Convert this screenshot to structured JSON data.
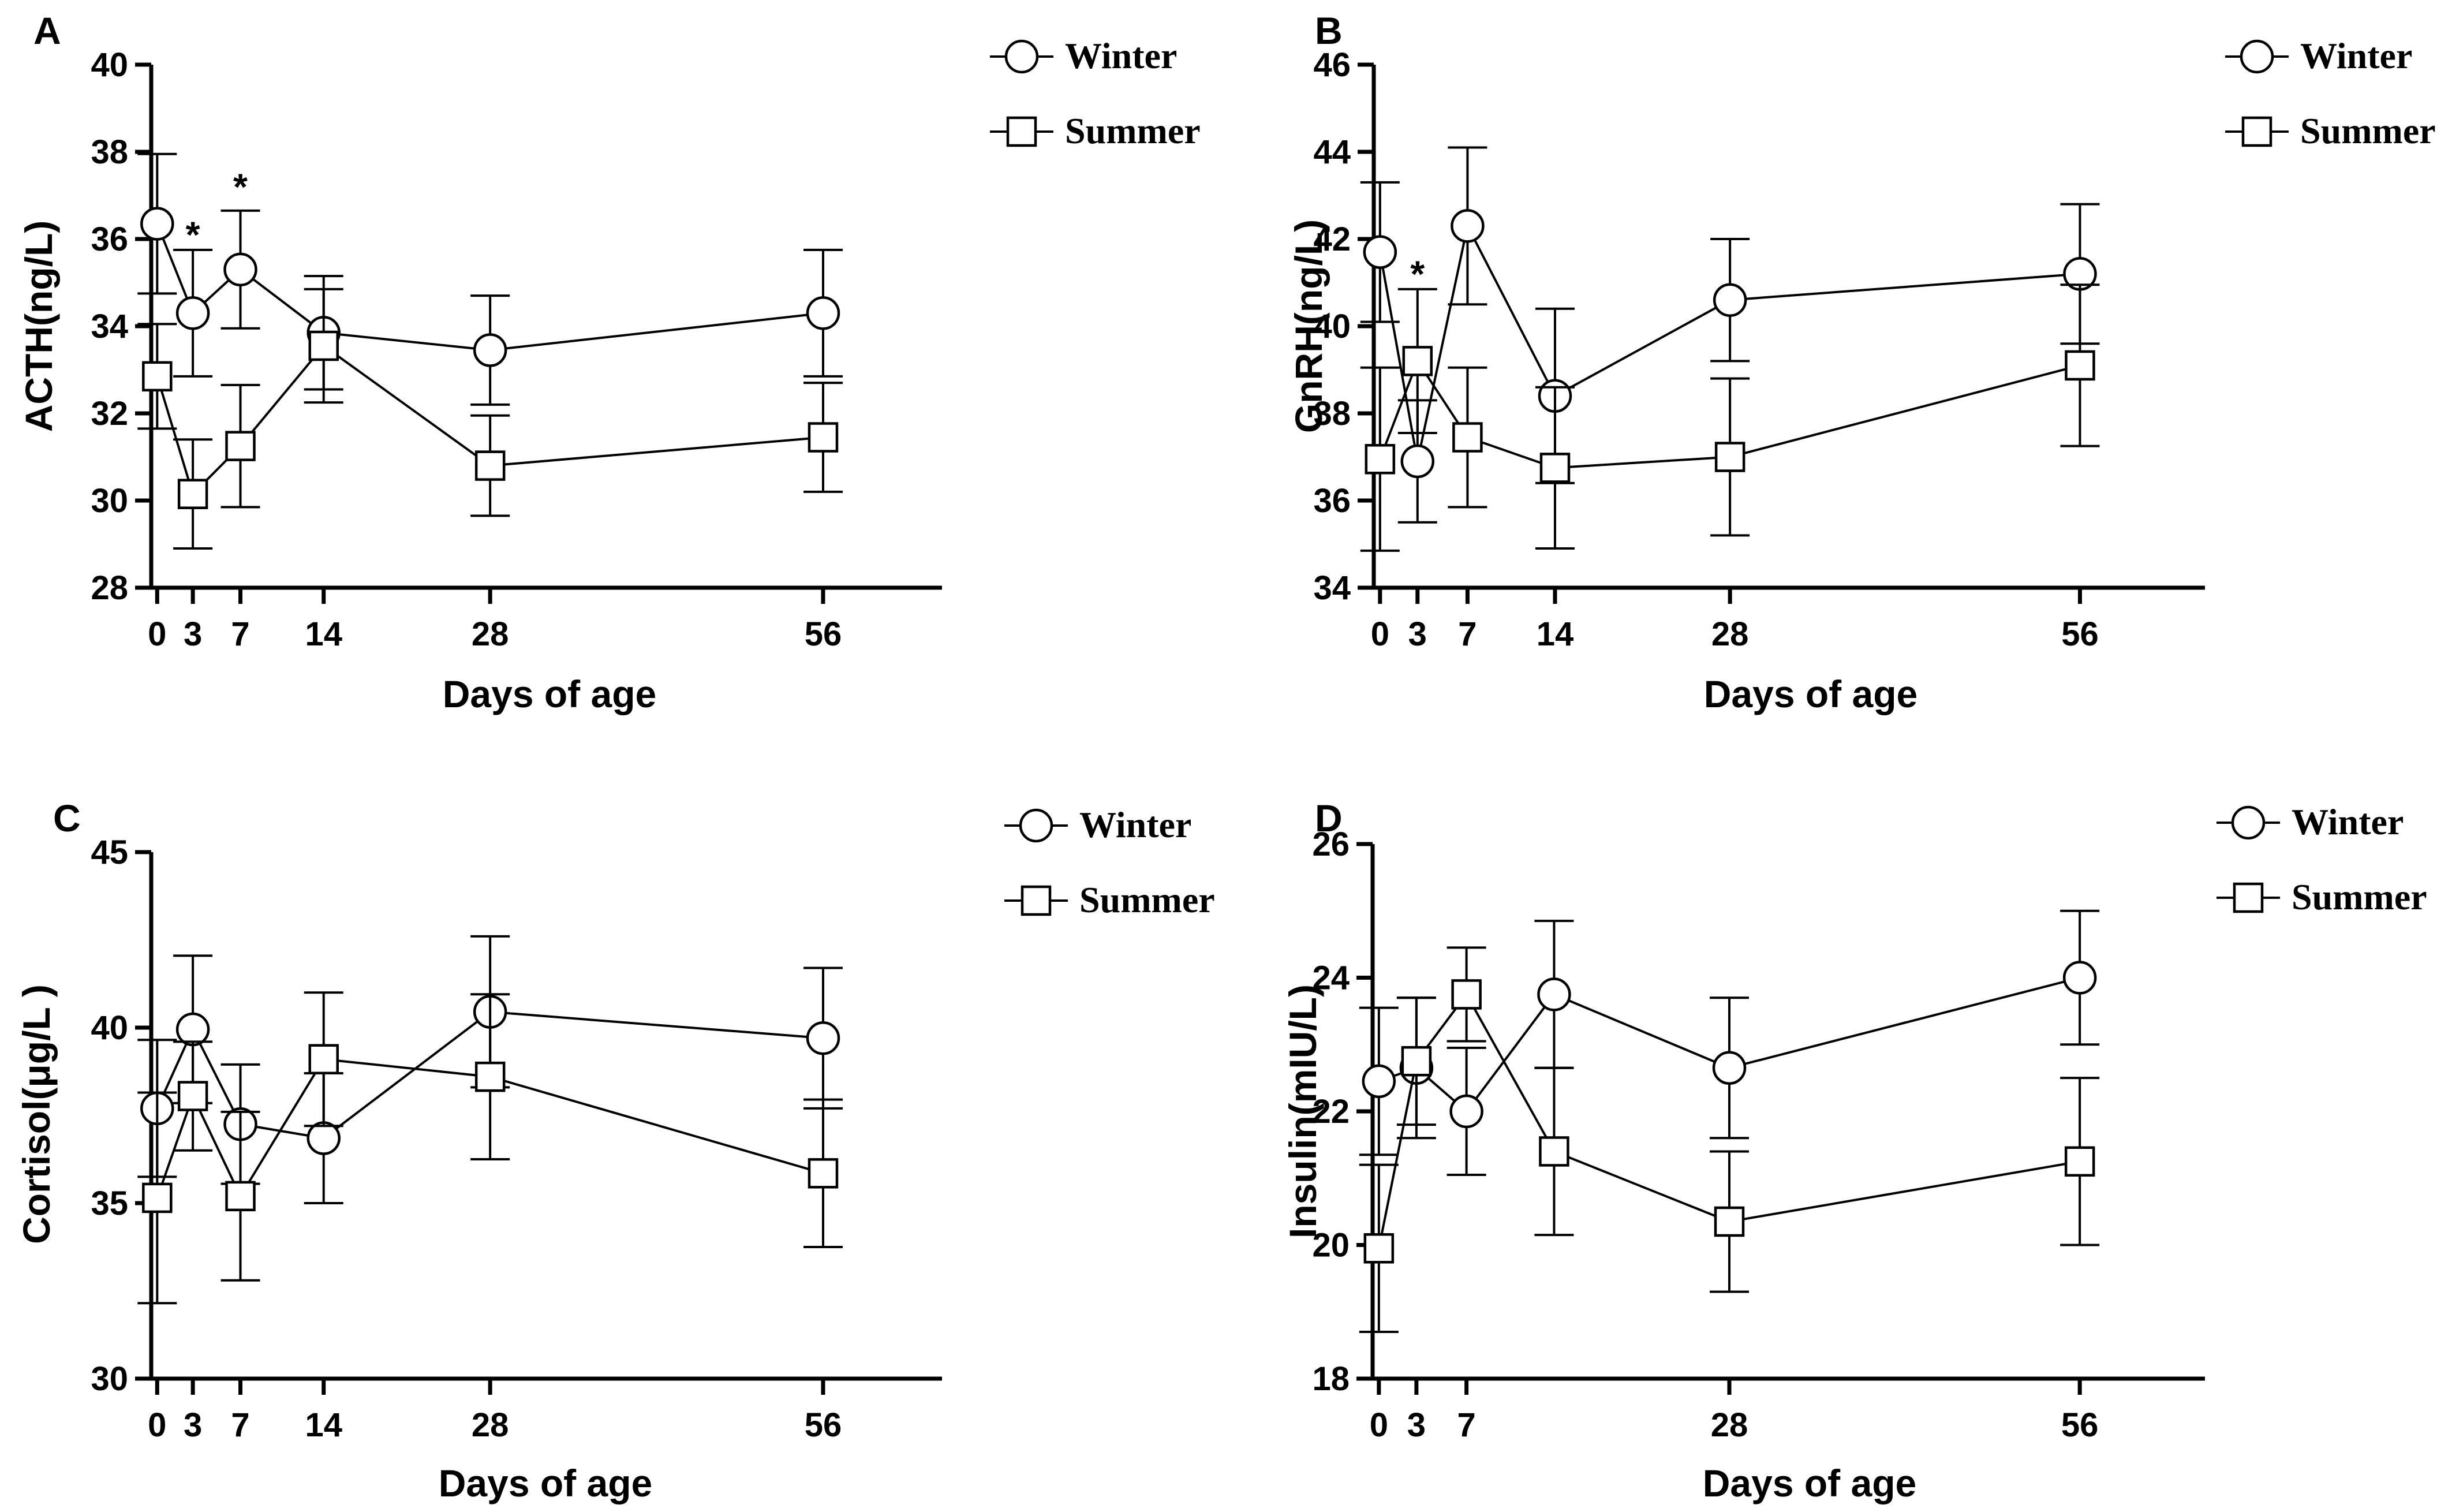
{
  "chart_data": [
    {
      "type": "line",
      "panel": "A",
      "ylabel": "ACTH(ng/L)",
      "xlabel": "Days of age",
      "ylim": [
        28,
        40
      ],
      "yticks": [
        28,
        30,
        32,
        34,
        36,
        38,
        40
      ],
      "ytick_labels": [
        "28",
        "30",
        "32",
        "34",
        "36",
        "38",
        "40"
      ],
      "xlim": [
        -0.5,
        66
      ],
      "xticks": [
        0,
        3,
        7,
        14,
        28,
        56
      ],
      "xtick_labels": [
        "0",
        "3",
        "7",
        "14",
        "28",
        "56"
      ],
      "x": [
        0,
        3,
        7,
        14,
        28,
        56
      ],
      "legend": [
        "Winter",
        "Summer"
      ],
      "series": [
        {
          "name": "Winter",
          "marker": "circle",
          "values": [
            36.35,
            34.3,
            35.3,
            33.85,
            33.45,
            34.3
          ],
          "errors": [
            1.6,
            1.45,
            1.35,
            1.3,
            1.25,
            1.45
          ]
        },
        {
          "name": "Summer",
          "marker": "square",
          "values": [
            32.85,
            30.15,
            31.25,
            33.55,
            30.8,
            31.45
          ],
          "errors": [
            1.2,
            1.25,
            1.4,
            1.3,
            1.15,
            1.25
          ]
        }
      ],
      "annotations": [
        {
          "x": 3,
          "y": 36.1,
          "text": "*"
        },
        {
          "x": 7,
          "y": 37.2,
          "text": "*"
        }
      ]
    },
    {
      "type": "line",
      "panel": "B",
      "ylabel": "GnRH(ng/L)",
      "xlabel": "Days of age",
      "ylim": [
        34,
        46
      ],
      "yticks": [
        34,
        36,
        38,
        40,
        42,
        44,
        46
      ],
      "ytick_labels": [
        "34",
        "36",
        "38",
        "40",
        "42",
        "44",
        "46"
      ],
      "xlim": [
        -0.5,
        66
      ],
      "xticks": [
        0,
        3,
        7,
        14,
        28,
        56
      ],
      "xtick_labels": [
        "0",
        "3",
        "7",
        "14",
        "28",
        "56"
      ],
      "x": [
        0,
        3,
        7,
        14,
        28,
        56
      ],
      "legend": [
        "Winter",
        "Summer"
      ],
      "series": [
        {
          "name": "Winter",
          "marker": "circle",
          "values": [
            41.7,
            36.9,
            42.3,
            38.4,
            40.6,
            41.2
          ],
          "errors": [
            1.6,
            1.4,
            1.8,
            2.0,
            1.4,
            1.6
          ]
        },
        {
          "name": "Summer",
          "marker": "square",
          "values": [
            36.95,
            39.2,
            37.45,
            36.75,
            37.0,
            39.1
          ],
          "errors": [
            2.1,
            1.65,
            1.6,
            1.85,
            1.8,
            1.85
          ]
        }
      ],
      "annotations": [
        {
          "x": 3,
          "y": 41.2,
          "text": "*"
        }
      ]
    },
    {
      "type": "line",
      "panel": "C",
      "ylabel": "Cortisol(μg/L )",
      "xlabel": "Days of age",
      "ylim": [
        30,
        45
      ],
      "yticks": [
        30,
        35,
        40,
        45
      ],
      "ytick_labels": [
        "30",
        "35",
        "40",
        "45"
      ],
      "xlim": [
        -0.5,
        66
      ],
      "xticks": [
        0,
        3,
        7,
        14,
        28,
        56
      ],
      "xtick_labels": [
        "0",
        "3",
        "7",
        "14",
        "28",
        "56"
      ],
      "x": [
        0,
        3,
        7,
        14,
        28,
        56
      ],
      "legend": [
        "Winter",
        "Summer"
      ],
      "series": [
        {
          "name": "Winter",
          "marker": "circle",
          "values": [
            37.7,
            39.95,
            37.25,
            36.85,
            40.45,
            39.7
          ],
          "errors": [
            1.95,
            2.1,
            1.7,
            1.85,
            2.15,
            2.0
          ]
        },
        {
          "name": "Summer",
          "marker": "square",
          "values": [
            35.15,
            38.05,
            35.2,
            39.1,
            38.6,
            35.85
          ],
          "errors": [
            3.0,
            1.55,
            2.4,
            1.9,
            2.35,
            2.1
          ]
        }
      ]
    },
    {
      "type": "line",
      "panel": "D",
      "ylabel": "Insulin(mIU/L)",
      "xlabel": "Days of age",
      "ylim": [
        18,
        26
      ],
      "yticks": [
        18,
        20,
        22,
        24,
        26
      ],
      "ytick_labels": [
        "18",
        "20",
        "22",
        "24",
        "26"
      ],
      "xlim": [
        -0.5,
        66
      ],
      "xticks": [
        0,
        3,
        7,
        28,
        56
      ],
      "xtick_labels": [
        "0",
        "3",
        "7",
        "28",
        "56"
      ],
      "x": [
        0,
        3,
        7,
        14,
        28,
        56
      ],
      "legend": [
        "Winter",
        "Summer"
      ],
      "series": [
        {
          "name": "Winter",
          "marker": "circle",
          "values": [
            22.45,
            22.65,
            22.0,
            23.75,
            22.65,
            24.0
          ],
          "errors": [
            1.1,
            1.05,
            0.95,
            1.1,
            1.05,
            1.0
          ]
        },
        {
          "name": "Summer",
          "marker": "square",
          "values": [
            19.95,
            22.75,
            23.75,
            21.4,
            20.35,
            21.25
          ],
          "errors": [
            1.25,
            0.95,
            0.7,
            1.25,
            1.05,
            1.25
          ]
        }
      ]
    }
  ]
}
